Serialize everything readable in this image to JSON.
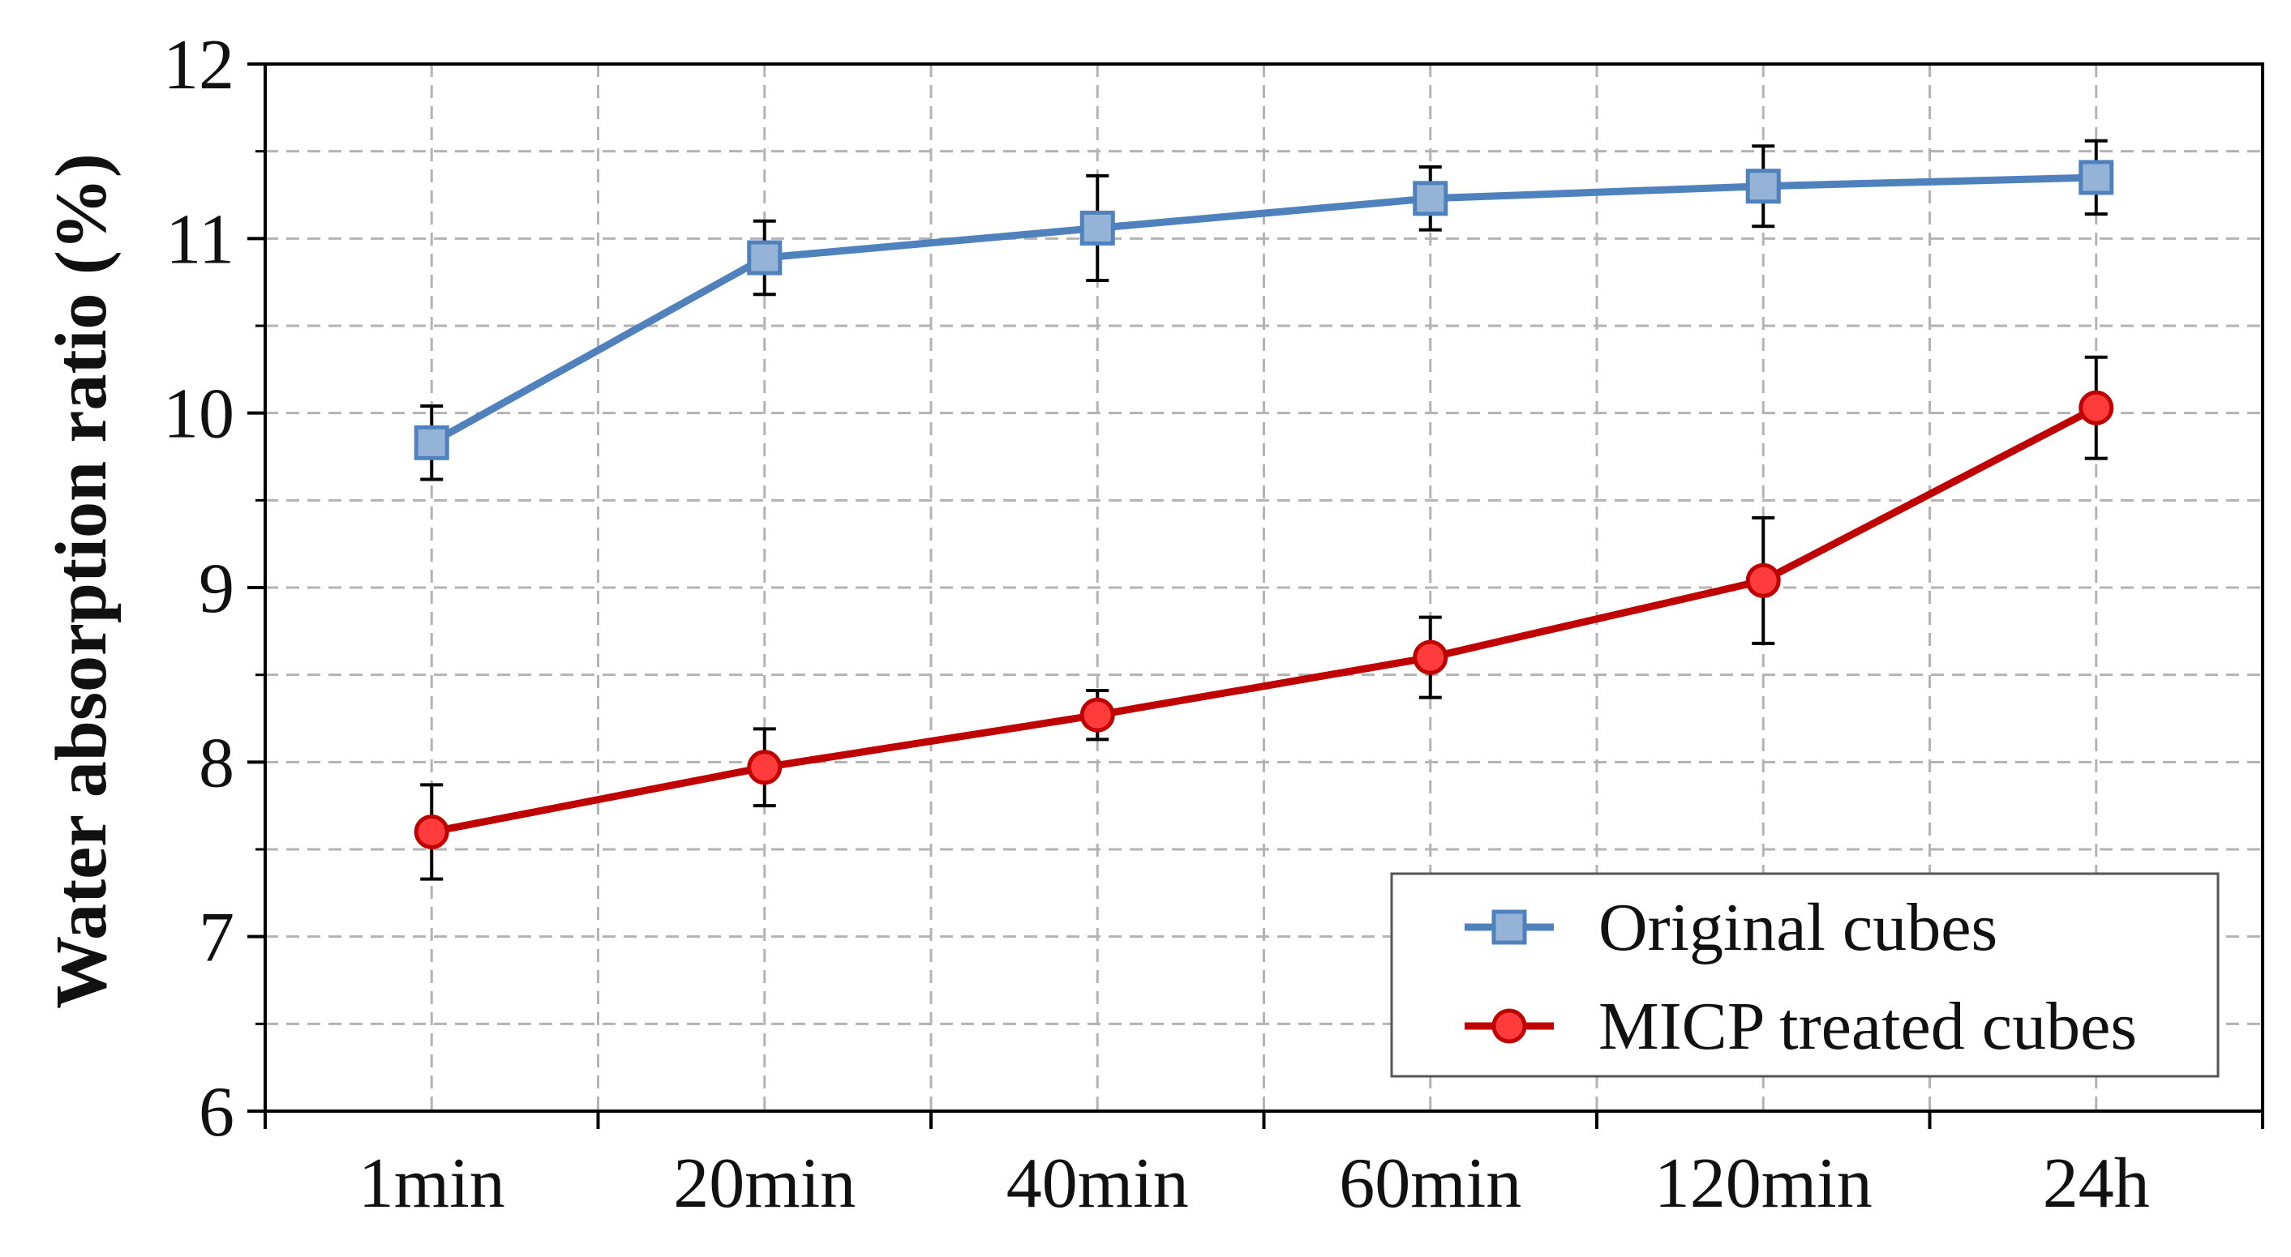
{
  "chart_data": {
    "type": "line",
    "title": "",
    "xlabel": "",
    "ylabel": "Water absorption ratio (%)",
    "categories": [
      "1min",
      "20min",
      "40min",
      "60min",
      "120min",
      "24h"
    ],
    "ylim": [
      6,
      12
    ],
    "yticks": [
      6,
      7,
      8,
      9,
      10,
      11,
      12
    ],
    "grid": true,
    "legend_position": "bottom-right",
    "series": [
      {
        "name": "Original cubes",
        "marker": "square",
        "color": "#4f81bd",
        "marker_fill": "#95b3d7",
        "values": [
          9.83,
          10.89,
          11.06,
          11.23,
          11.3,
          11.35
        ],
        "error": [
          0.21,
          0.21,
          0.3,
          0.18,
          0.23,
          0.21
        ]
      },
      {
        "name": "MICP treated cubes",
        "marker": "circle",
        "color": "#c00000",
        "marker_fill": "#ff3b3b",
        "values": [
          7.6,
          7.97,
          8.27,
          8.6,
          9.04,
          10.03
        ],
        "error": [
          0.27,
          0.22,
          0.14,
          0.23,
          0.36,
          0.29
        ]
      }
    ]
  }
}
